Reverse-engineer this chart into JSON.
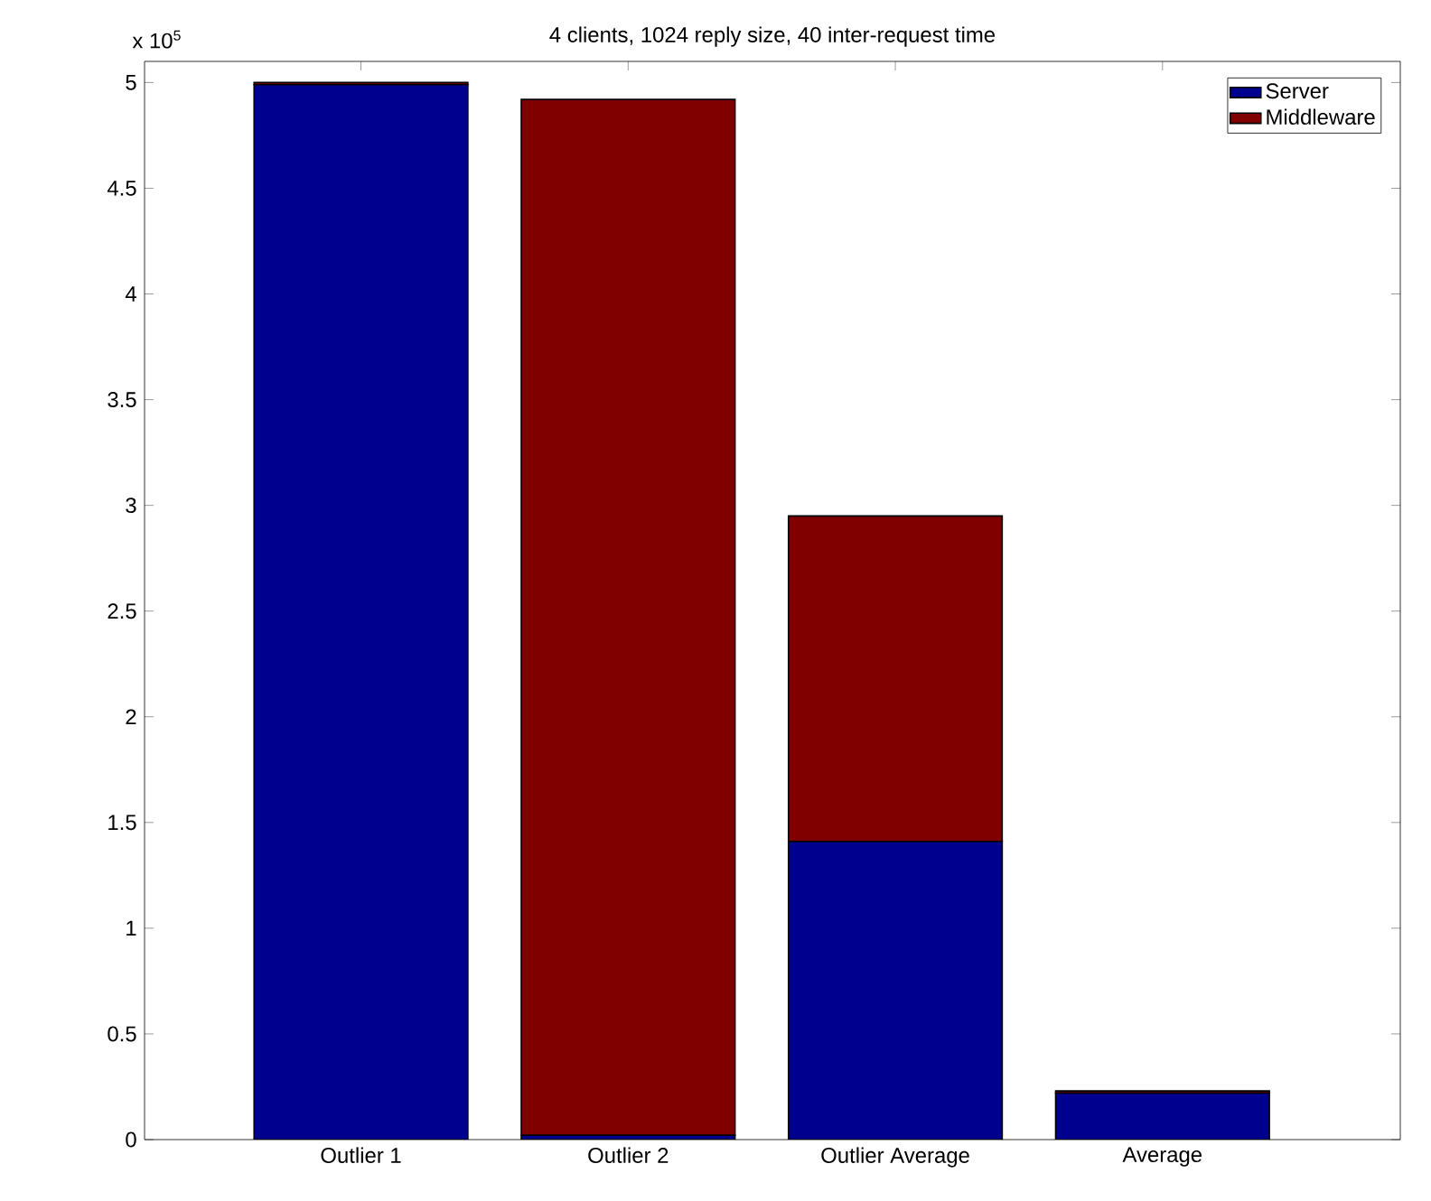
{
  "chart_data": {
    "type": "bar",
    "title": "4 clients, 1024 reply size, 40 inter-request time",
    "categories": [
      "Outlier 1",
      "Outlier 2",
      "Outlier Average",
      "Average"
    ],
    "series": [
      {
        "name": "Server",
        "color": "#00008f",
        "values": [
          4.99,
          0.02,
          1.41,
          0.22
        ]
      },
      {
        "name": "Middleware",
        "color": "#800000",
        "values": [
          0.01,
          4.9,
          1.54,
          0.01
        ]
      }
    ],
    "stacked": true,
    "ylim": [
      0,
      5.1
    ],
    "yticks": [
      0,
      0.5,
      1,
      1.5,
      2,
      2.5,
      3,
      3.5,
      4,
      4.5,
      5
    ],
    "grid": false,
    "legend": "top right",
    "annotations": [
      "x 10$^{5}$"
    ]
  }
}
